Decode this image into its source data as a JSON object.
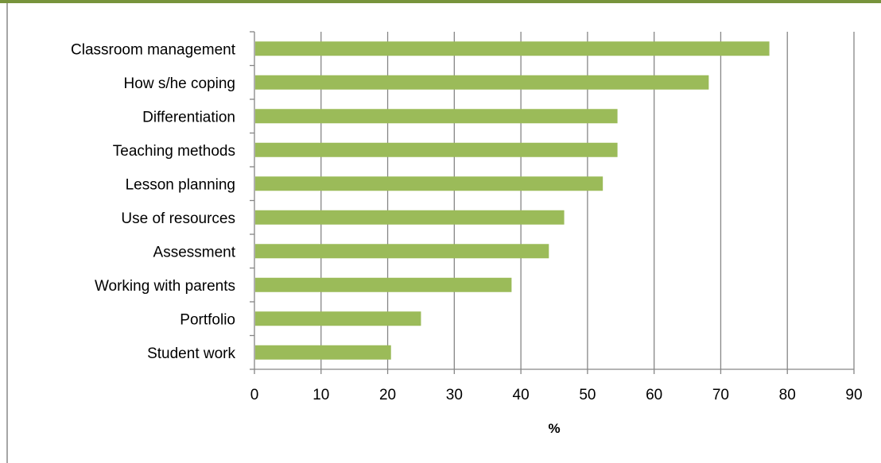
{
  "chart_data": {
    "type": "bar",
    "orientation": "horizontal",
    "title": "",
    "xlabel": "%",
    "ylabel": "",
    "xlim": [
      0,
      90
    ],
    "x_ticks": [
      0,
      10,
      20,
      30,
      40,
      50,
      60,
      70,
      80,
      90
    ],
    "grid": "vertical",
    "legend": "none",
    "categories": [
      "Classroom management",
      "How s/he coping",
      "Differentiation",
      "Teaching methods",
      "Lesson planning",
      "Use of resources",
      "Assessment",
      "Working with parents",
      "Portfolio",
      "Student work"
    ],
    "values": [
      77.3,
      68.2,
      54.5,
      54.5,
      52.3,
      46.5,
      44.2,
      38.6,
      25.0,
      20.5
    ],
    "colors": {
      "bar": "#9bbb59",
      "gridline": "#868686",
      "axis": "#868686",
      "frame": "#77933c"
    }
  }
}
